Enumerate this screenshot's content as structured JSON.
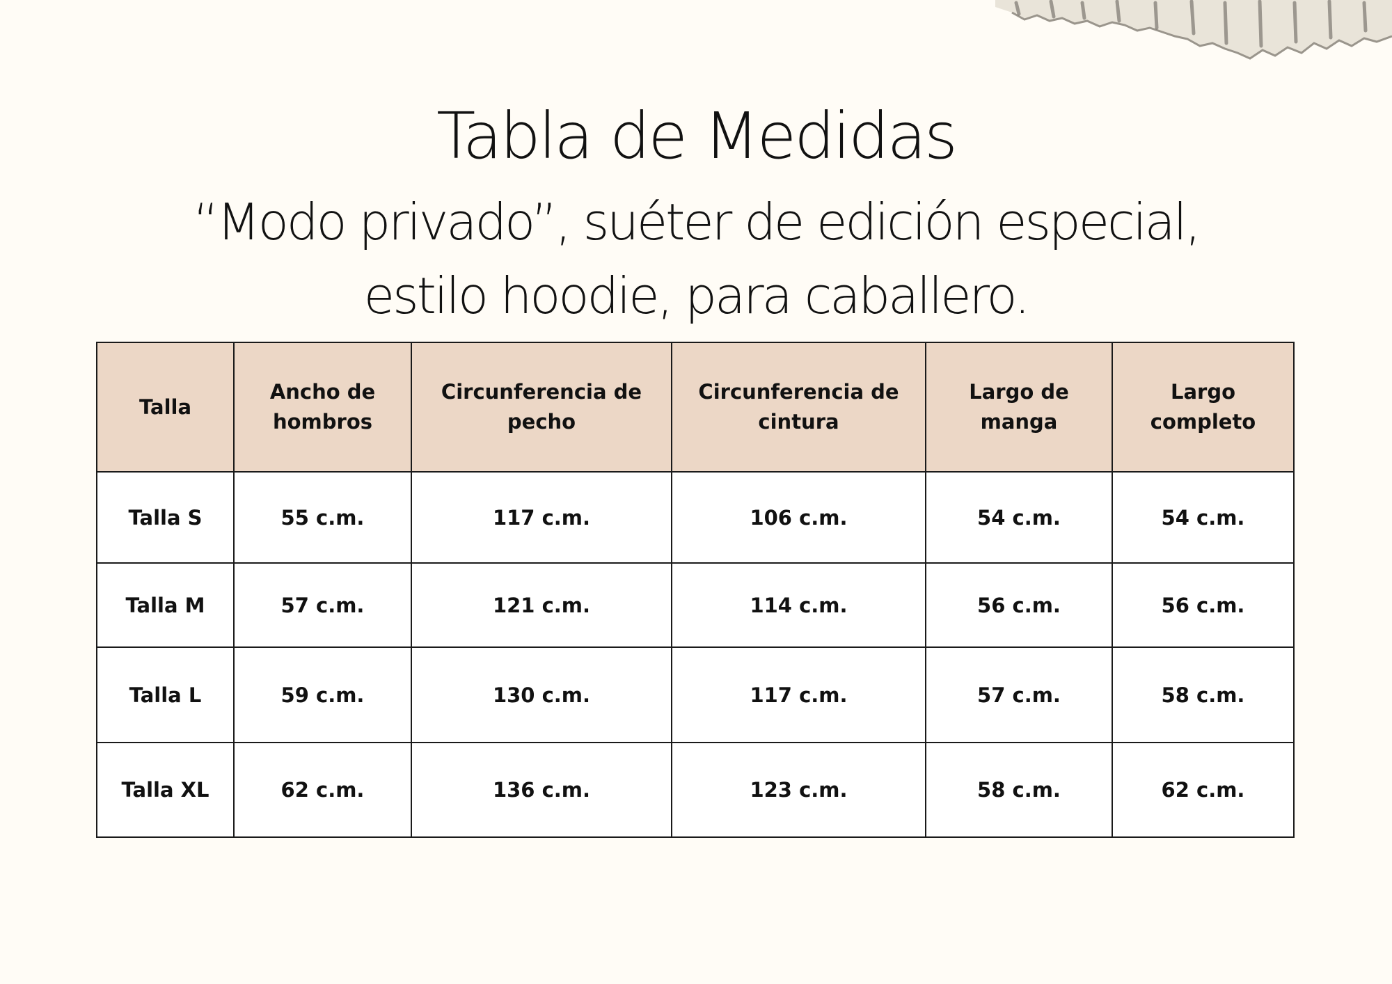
{
  "header": {
    "title": "Tabla de Medidas",
    "subtitle": "“Modo privado”, suéter de edición especial, estilo hoodie, para caballero."
  },
  "table": {
    "columns": [
      "Talla",
      "Ancho de hombros",
      "Circunferencia de pecho",
      "Circunferencia de cintura",
      "Largo de manga",
      "Largo completo"
    ],
    "rows": [
      [
        "Talla S",
        "55 c.m.",
        "117 c.m.",
        "106 c.m.",
        "54 c.m.",
        "54 c.m."
      ],
      [
        "Talla M",
        "57 c.m.",
        "121 c.m.",
        "114 c.m.",
        "56 c.m.",
        "56 c.m."
      ],
      [
        "Talla L",
        "59 c.m.",
        "130 c.m.",
        "117 c.m.",
        "57 c.m.",
        "58 c.m."
      ],
      [
        "Talla XL",
        "62 c.m.",
        "136 c.m.",
        "123 c.m.",
        "58 c.m.",
        "62 c.m."
      ]
    ]
  },
  "colors": {
    "background": "#fffcf6",
    "header_fill": "#ecd7c6",
    "border": "#1a1a1a",
    "text": "#111111"
  }
}
